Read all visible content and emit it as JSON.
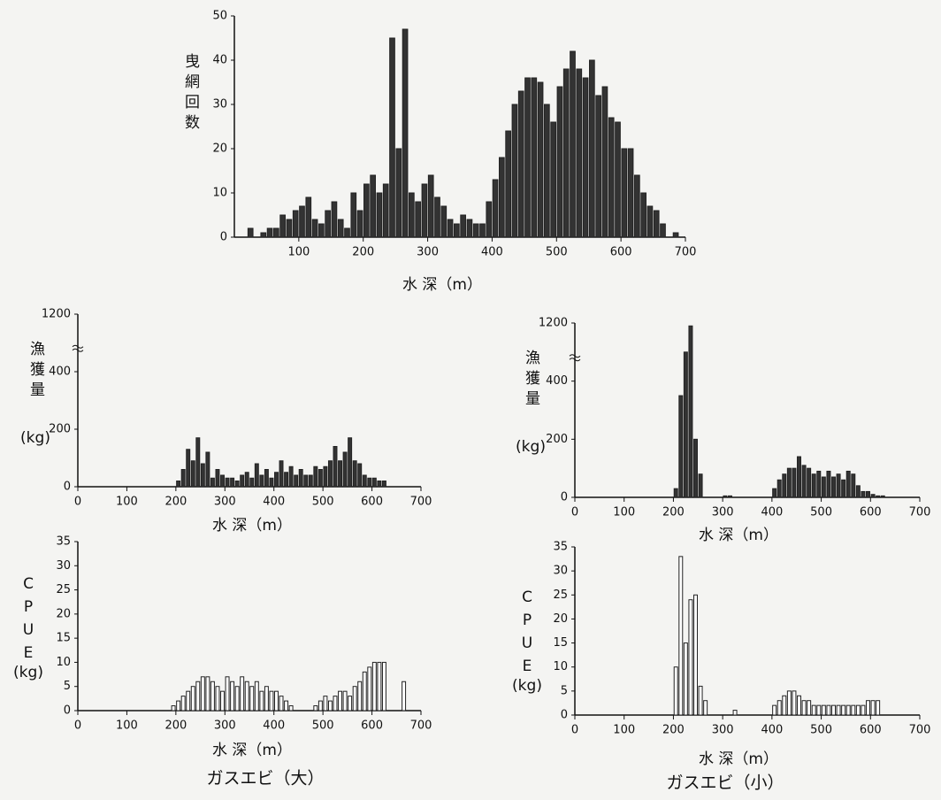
{
  "chart_data": [
    {
      "type": "histogram",
      "ylabel": "曳網回数",
      "xlabel": "水 深（m）",
      "color": "#333333",
      "edgecolor": "#222222",
      "bins": [
        0,
        10,
        20,
        30,
        40,
        50,
        60,
        70,
        80,
        90,
        100,
        110,
        120,
        130,
        140,
        150,
        160,
        170,
        180,
        190,
        200,
        210,
        220,
        230,
        240,
        250,
        260,
        270,
        280,
        290,
        300,
        310,
        320,
        330,
        340,
        350,
        360,
        370,
        380,
        390,
        400,
        410,
        420,
        430,
        440,
        450,
        460,
        470,
        480,
        490,
        500,
        510,
        520,
        530,
        540,
        550,
        560,
        570,
        580,
        590,
        600,
        610,
        620,
        630,
        640,
        650,
        660,
        670,
        680,
        690,
        700
      ],
      "values": [
        0,
        0,
        2,
        0,
        1,
        2,
        2,
        5,
        4,
        6,
        7,
        9,
        4,
        3,
        6,
        8,
        4,
        2,
        10,
        6,
        12,
        14,
        10,
        12,
        45,
        20,
        47,
        10,
        8,
        12,
        14,
        9,
        7,
        4,
        3,
        5,
        4,
        3,
        3,
        8,
        13,
        18,
        24,
        30,
        33,
        36,
        36,
        35,
        30,
        26,
        34,
        38,
        42,
        38,
        36,
        40,
        32,
        34,
        27,
        26,
        20,
        20,
        14,
        10,
        7,
        6,
        3,
        0,
        1,
        0
      ],
      "xlim": [
        0,
        700
      ],
      "xticks": [
        100,
        200,
        300,
        400,
        500,
        600,
        700
      ],
      "ylim": [
        0,
        50
      ],
      "yticks": [
        0,
        10,
        20,
        30,
        40,
        50
      ]
    },
    {
      "type": "histogram",
      "ylabel": "漁獲量",
      "yunit": "(kg)",
      "xlabel": "水 深（m）",
      "color": "#333333",
      "edgecolor": "#222222",
      "bins": [
        200,
        210,
        220,
        230,
        240,
        250,
        260,
        270,
        280,
        290,
        300,
        310,
        320,
        330,
        340,
        350,
        360,
        370,
        380,
        390,
        400,
        410,
        420,
        430,
        440,
        450,
        460,
        470,
        480,
        490,
        500,
        510,
        520,
        530,
        540,
        550,
        560,
        570,
        580,
        590,
        600,
        610,
        620,
        630
      ],
      "values": [
        20,
        60,
        130,
        90,
        170,
        80,
        120,
        30,
        60,
        40,
        30,
        30,
        20,
        40,
        50,
        30,
        80,
        40,
        60,
        30,
        50,
        90,
        50,
        70,
        40,
        60,
        40,
        40,
        70,
        60,
        70,
        90,
        140,
        90,
        120,
        170,
        90,
        80,
        40,
        30,
        30,
        20,
        20
      ],
      "xlim": [
        0,
        700
      ],
      "xticks": [
        0,
        100,
        200,
        300,
        400,
        500,
        600,
        700
      ],
      "ylim": [
        0,
        1200
      ],
      "yticks": [
        0,
        200,
        400,
        1200
      ],
      "ybreak": 450
    },
    {
      "type": "histogram",
      "ylabel": "CPUE",
      "yunit": "(kg)",
      "xlabel": "水 深（m）",
      "color": "#ffffff",
      "edgecolor": "#222222",
      "bins": [
        190,
        200,
        210,
        220,
        230,
        240,
        250,
        260,
        270,
        280,
        290,
        300,
        310,
        320,
        330,
        340,
        350,
        360,
        370,
        380,
        390,
        400,
        410,
        420,
        430,
        440,
        450,
        460,
        470,
        480,
        490,
        500,
        510,
        520,
        530,
        540,
        550,
        560,
        570,
        580,
        590,
        600,
        610,
        620,
        630,
        640,
        650,
        660,
        670
      ],
      "values": [
        1,
        2,
        3,
        4,
        5,
        6,
        7,
        7,
        6,
        5,
        4,
        7,
        6,
        5,
        7,
        6,
        5,
        6,
        4,
        5,
        4,
        4,
        3,
        2,
        1,
        0,
        0,
        0,
        0,
        1,
        2,
        3,
        2,
        3,
        4,
        4,
        3,
        5,
        6,
        8,
        9,
        10,
        10,
        10,
        0,
        0,
        0,
        6
      ],
      "xlim": [
        0,
        700
      ],
      "xticks": [
        0,
        100,
        200,
        300,
        400,
        500,
        600,
        700
      ],
      "ylim": [
        0,
        35
      ],
      "yticks": [
        0,
        5,
        10,
        15,
        20,
        25,
        30,
        35
      ],
      "subtitle": "ガスエビ（大）"
    },
    {
      "type": "histogram",
      "ylabel": "漁獲量",
      "yunit": "(kg)",
      "xlabel": "水 深（m）",
      "color": "#333333",
      "edgecolor": "#222222",
      "bins": [
        200,
        210,
        220,
        230,
        240,
        250,
        260,
        270,
        280,
        290,
        300,
        310,
        320,
        330,
        340,
        350,
        360,
        370,
        380,
        390,
        400,
        410,
        420,
        430,
        440,
        450,
        460,
        470,
        480,
        490,
        500,
        510,
        520,
        530,
        540,
        550,
        560,
        570,
        580,
        590,
        600,
        610,
        620,
        630,
        640
      ],
      "values": [
        30,
        350,
        700,
        1150,
        200,
        80,
        0,
        0,
        0,
        0,
        5,
        5,
        0,
        0,
        0,
        0,
        0,
        0,
        0,
        0,
        30,
        60,
        80,
        100,
        100,
        140,
        110,
        100,
        80,
        90,
        70,
        90,
        70,
        80,
        60,
        90,
        80,
        40,
        20,
        20,
        10,
        5,
        5,
        0
      ],
      "xlim": [
        0,
        700
      ],
      "xticks": [
        0,
        100,
        200,
        300,
        400,
        500,
        600,
        700
      ],
      "ylim": [
        0,
        1200
      ],
      "yticks": [
        0,
        200,
        400,
        1200
      ],
      "ybreak": 450
    },
    {
      "type": "histogram",
      "ylabel": "CPUE",
      "yunit": "(kg)",
      "xlabel": "水 深（m）",
      "color": "#ffffff",
      "edgecolor": "#222222",
      "bins": [
        200,
        210,
        220,
        230,
        240,
        250,
        260,
        270,
        280,
        290,
        300,
        310,
        320,
        330,
        340,
        350,
        360,
        370,
        380,
        390,
        400,
        410,
        420,
        430,
        440,
        450,
        460,
        470,
        480,
        490,
        500,
        510,
        520,
        530,
        540,
        550,
        560,
        570,
        580,
        590,
        600,
        610,
        620
      ],
      "values": [
        10,
        33,
        15,
        24,
        25,
        6,
        3,
        0,
        0,
        0,
        0,
        0,
        1,
        0,
        0,
        0,
        0,
        0,
        0,
        0,
        2,
        3,
        4,
        5,
        5,
        4,
        3,
        3,
        2,
        2,
        2,
        2,
        2,
        2,
        2,
        2,
        2,
        2,
        2,
        3,
        3,
        3
      ],
      "xlim": [
        0,
        700
      ],
      "xticks": [
        0,
        100,
        200,
        300,
        400,
        500,
        600,
        700
      ],
      "ylim": [
        0,
        35
      ],
      "yticks": [
        0,
        5,
        10,
        15,
        20,
        25,
        30,
        35
      ],
      "subtitle": "ガスエビ（小）"
    }
  ]
}
